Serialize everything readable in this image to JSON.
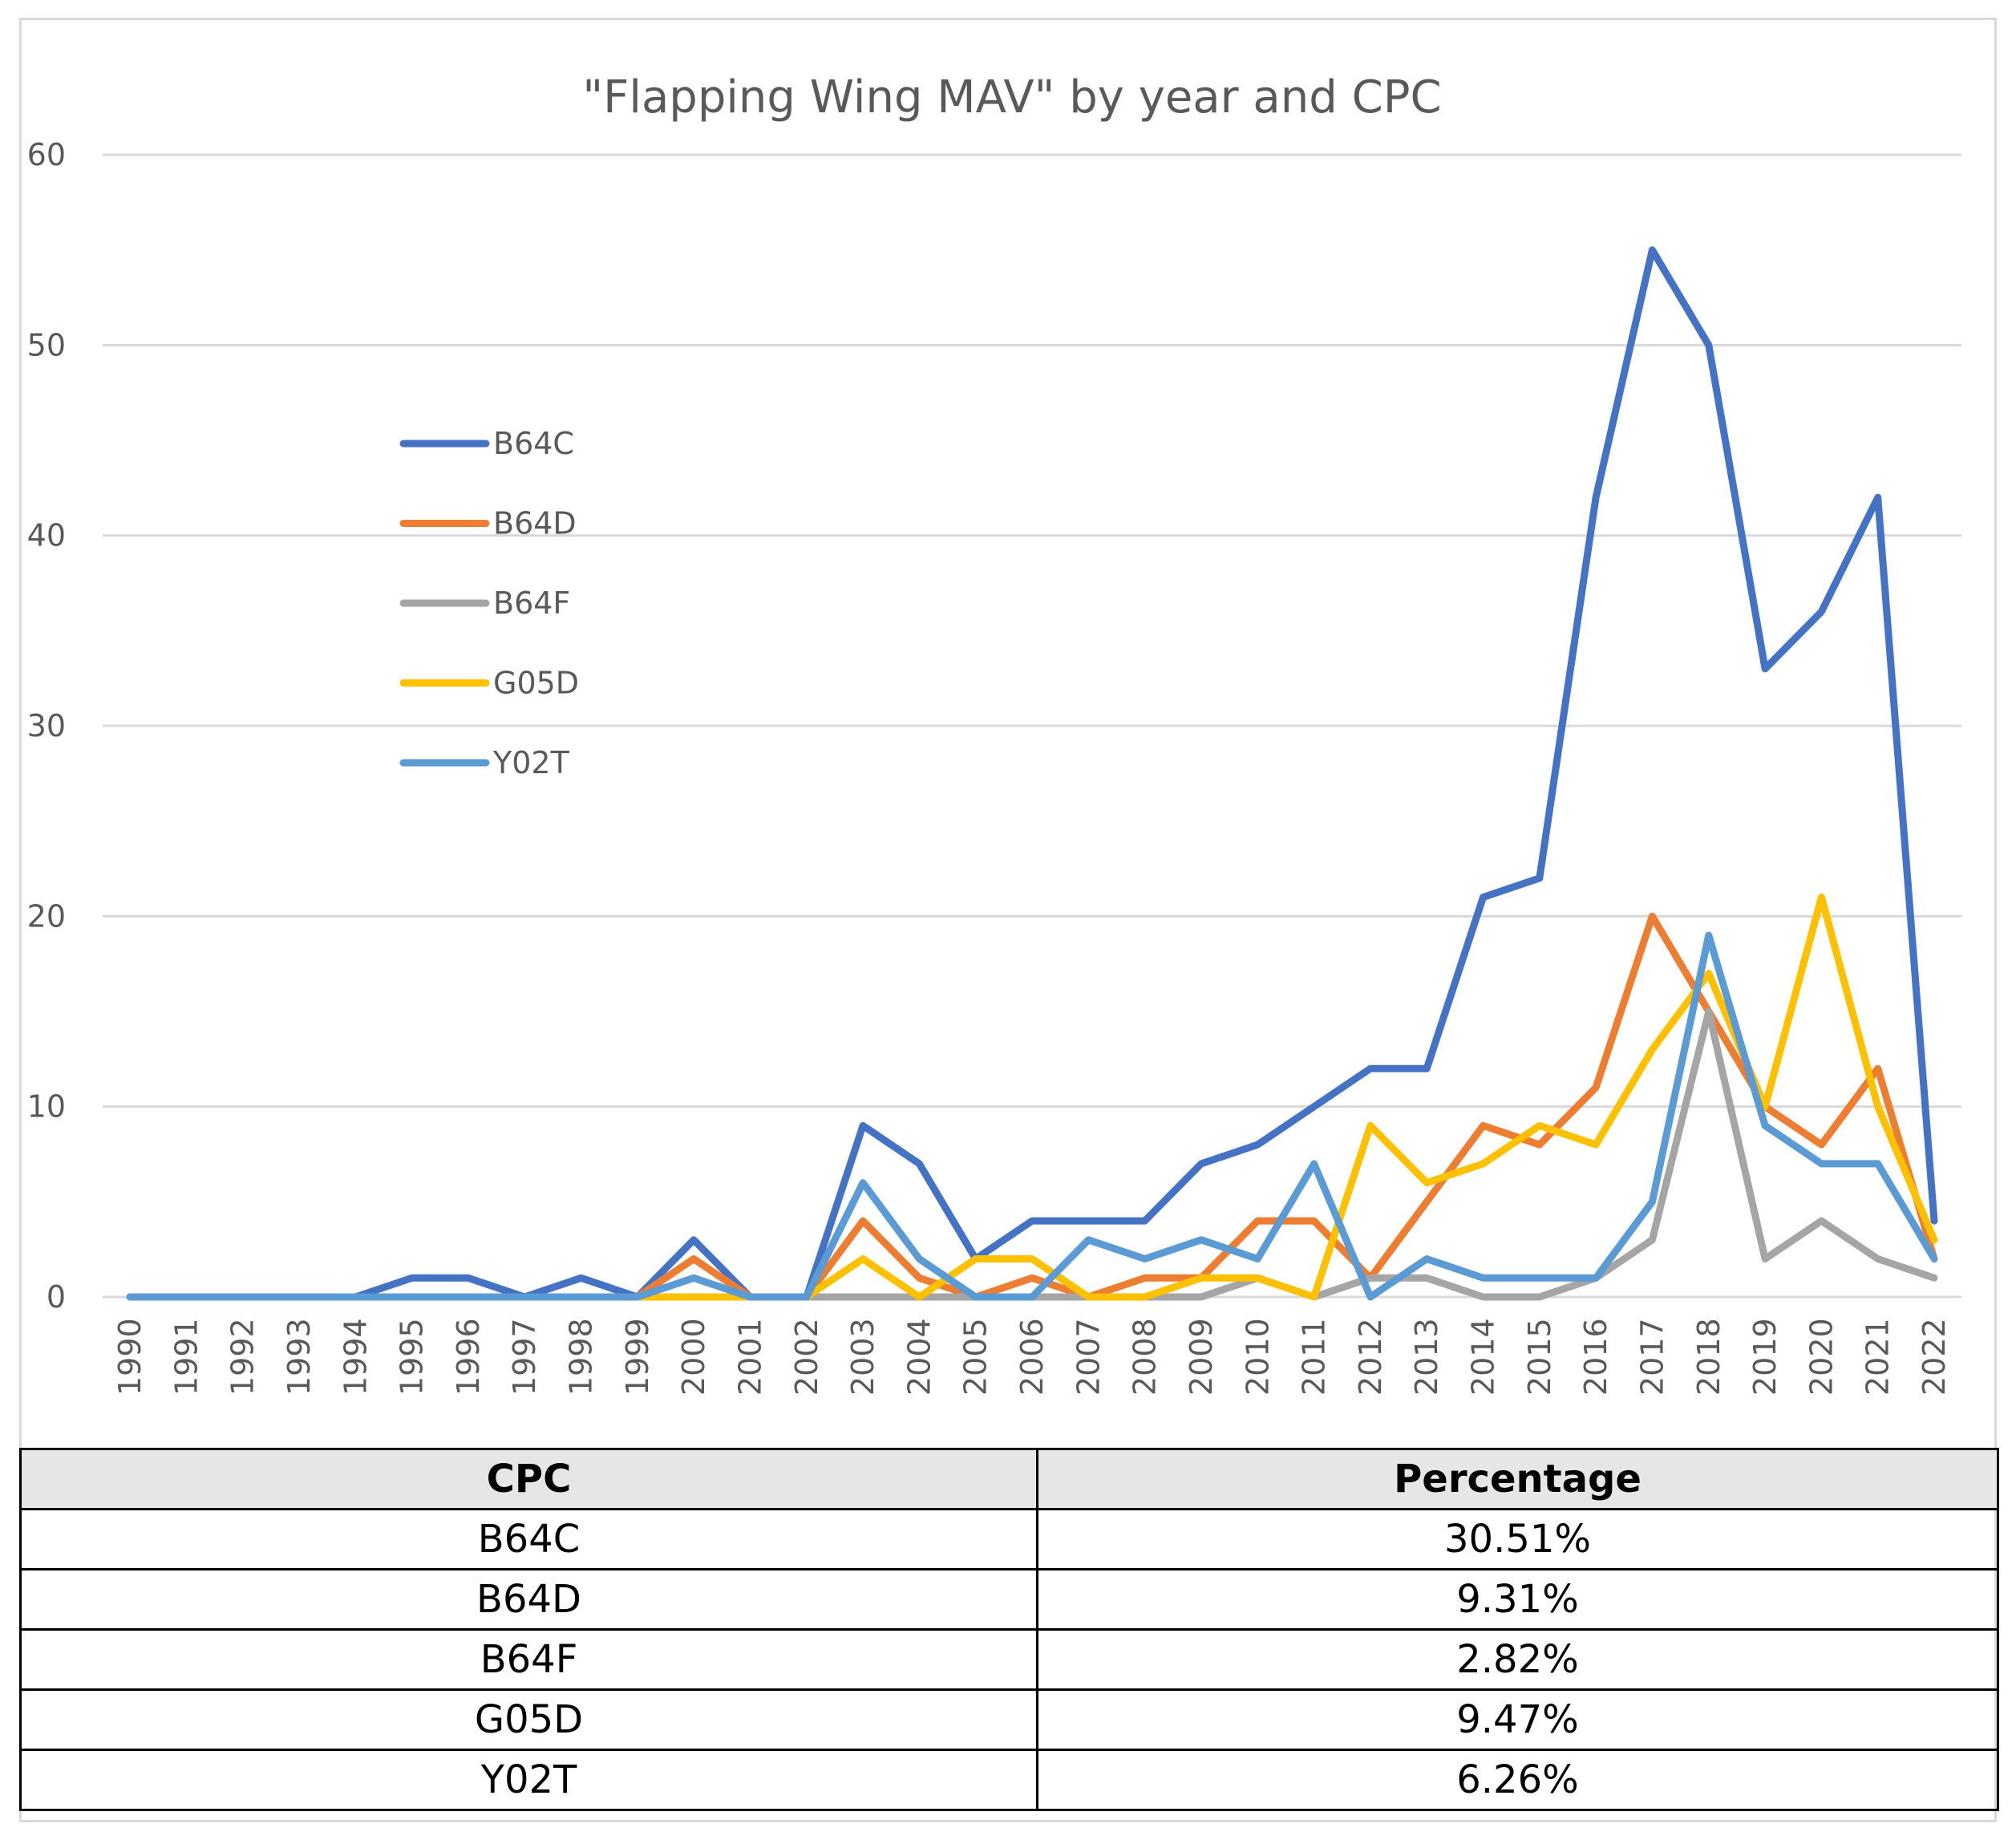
{
  "chart_data": {
    "type": "line",
    "title": "\"Flapping Wing MAV\" by year and CPC",
    "xlabel": "",
    "ylabel": "",
    "ylim": [
      0,
      60
    ],
    "yticks": [
      0,
      10,
      20,
      30,
      40,
      50,
      60
    ],
    "grid": true,
    "legend_position": "left, inside plot",
    "categories": [
      "1990",
      "1991",
      "1992",
      "1993",
      "1994",
      "1995",
      "1996",
      "1997",
      "1998",
      "1999",
      "2000",
      "2001",
      "2002",
      "2003",
      "2004",
      "2005",
      "2006",
      "2007",
      "2008",
      "2009",
      "2010",
      "2011",
      "2012",
      "2013",
      "2014",
      "2015",
      "2016",
      "2017",
      "2018",
      "2019",
      "2020",
      "2021",
      "2022"
    ],
    "series": [
      {
        "name": "B64C",
        "color": "#4472c4",
        "values": [
          0,
          0,
          0,
          0,
          0,
          1,
          1,
          0,
          1,
          0,
          3,
          0,
          0,
          9,
          7,
          2,
          4,
          4,
          4,
          7,
          8,
          10,
          12,
          12,
          21,
          22,
          42,
          55,
          50,
          33,
          36,
          42,
          4
        ]
      },
      {
        "name": "B64D",
        "color": "#ed7d31",
        "values": [
          0,
          0,
          0,
          0,
          0,
          0,
          0,
          0,
          0,
          0,
          2,
          0,
          0,
          4,
          1,
          0,
          1,
          0,
          1,
          1,
          4,
          4,
          1,
          5,
          9,
          8,
          11,
          20,
          15,
          10,
          8,
          12,
          2
        ]
      },
      {
        "name": "B64F",
        "color": "#a5a5a5",
        "values": [
          0,
          0,
          0,
          0,
          0,
          0,
          0,
          0,
          0,
          0,
          0,
          0,
          0,
          0,
          0,
          0,
          0,
          0,
          0,
          0,
          1,
          0,
          1,
          1,
          0,
          0,
          1,
          3,
          15,
          2,
          4,
          2,
          1
        ]
      },
      {
        "name": "G05D",
        "color": "#ffc000",
        "values": [
          0,
          0,
          0,
          0,
          0,
          0,
          0,
          0,
          0,
          0,
          0,
          0,
          0,
          2,
          0,
          2,
          2,
          0,
          0,
          1,
          1,
          0,
          9,
          6,
          7,
          9,
          8,
          13,
          17,
          10,
          21,
          10,
          3
        ]
      },
      {
        "name": "Y02T",
        "color": "#5b9bd5",
        "values": [
          0,
          0,
          0,
          0,
          0,
          0,
          0,
          0,
          0,
          0,
          1,
          0,
          0,
          6,
          2,
          0,
          0,
          3,
          2,
          3,
          2,
          7,
          0,
          2,
          1,
          1,
          1,
          5,
          19,
          9,
          7,
          7,
          2
        ]
      }
    ]
  },
  "table": {
    "headers": [
      "CPC",
      "Percentage"
    ],
    "rows": [
      [
        "B64C",
        "30.51%"
      ],
      [
        "B64D",
        "9.31%"
      ],
      [
        "B64F",
        "2.82%"
      ],
      [
        "G05D",
        "9.47%"
      ],
      [
        "Y02T",
        "6.26%"
      ]
    ]
  }
}
